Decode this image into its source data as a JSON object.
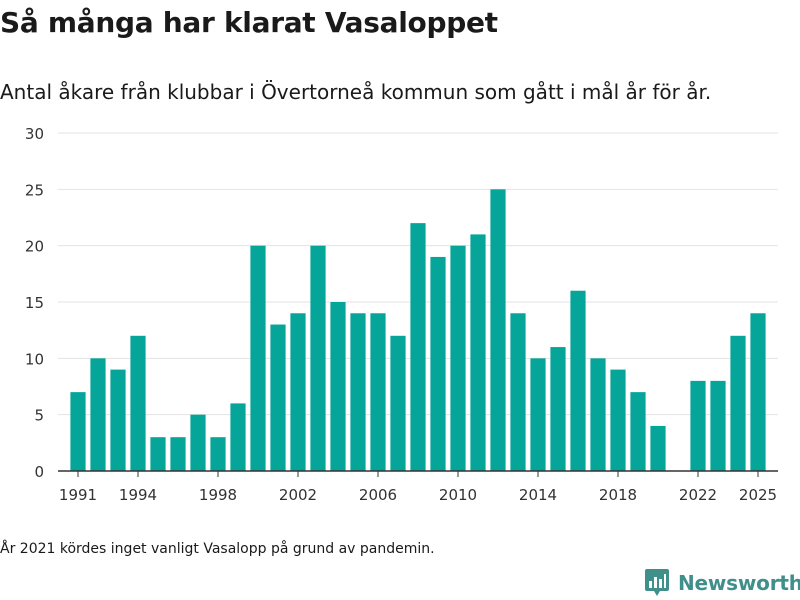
{
  "title": "Så många har klarat Vasaloppet",
  "subtitle": "Antal åkare från klubbar i Övertorneå kommun som gått i mål år för år.",
  "footnote": "År 2021 kördes inget vanligt Vasalopp på grund av pandemin.",
  "logo": {
    "text": "Newsworthy",
    "icon": "newsworthy-logo-icon"
  },
  "colors": {
    "bar": "#06a59a",
    "grid": "#e3e3e3",
    "axis": "#333333",
    "logo": "#3f8f8a"
  },
  "chart_data": {
    "type": "bar",
    "title": "Så många har klarat Vasaloppet",
    "xlabel": "",
    "ylabel": "",
    "ylim": [
      0,
      30
    ],
    "yticks": [
      0,
      5,
      10,
      15,
      20,
      25,
      30
    ],
    "xticks": [
      "1991",
      "1994",
      "1998",
      "2002",
      "2006",
      "2010",
      "2014",
      "2018",
      "2022",
      "2025"
    ],
    "xlim": [
      1990,
      2026
    ],
    "grid": true,
    "categories": [
      1991,
      1992,
      1993,
      1994,
      1995,
      1996,
      1997,
      1998,
      1999,
      2000,
      2001,
      2002,
      2003,
      2004,
      2005,
      2006,
      2007,
      2008,
      2009,
      2010,
      2011,
      2012,
      2013,
      2014,
      2015,
      2016,
      2017,
      2018,
      2019,
      2020,
      2022,
      2023,
      2024,
      2025
    ],
    "values": [
      7,
      10,
      9,
      12,
      3,
      3,
      5,
      3,
      6,
      20,
      13,
      14,
      20,
      15,
      14,
      14,
      12,
      22,
      19,
      20,
      21,
      25,
      14,
      10,
      11,
      16,
      10,
      9,
      7,
      4,
      8,
      8,
      12,
      14
    ]
  }
}
